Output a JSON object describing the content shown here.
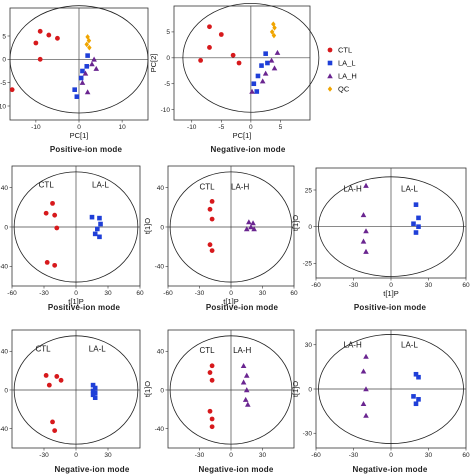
{
  "colors": {
    "CTL": "#d7191c",
    "LA_L": "#1f3fd8",
    "LA_H": "#6a2590",
    "QC": "#f0a500"
  },
  "legend": [
    {
      "label": "CTL",
      "shape": "circle",
      "color": "#d7191c"
    },
    {
      "label": "LA_L",
      "shape": "square",
      "color": "#1f3fd8"
    },
    {
      "label": "LA_H",
      "shape": "triangle",
      "color": "#6a2590"
    },
    {
      "label": "QC",
      "shape": "diamond",
      "color": "#f0a500"
    }
  ],
  "chart_data": [
    {
      "type": "scatter",
      "caption": "Positive-ion mode",
      "xlabel": "PC[1]",
      "ylabel": "",
      "xlim": [
        -16,
        16
      ],
      "ylim": [
        -13,
        11
      ],
      "xticks": [
        -10,
        0,
        10
      ],
      "yticks": [
        -10,
        -5,
        0,
        5
      ],
      "ellipse": {
        "rx": 16,
        "ry": 11.5
      },
      "group_labels": [],
      "series": [
        {
          "name": "CTL",
          "shape": "circle",
          "color": "#d7191c",
          "points": [
            [
              -9,
              6
            ],
            [
              -7,
              5.2
            ],
            [
              -10,
              3.5
            ],
            [
              -5,
              4.5
            ],
            [
              -9,
              0
            ],
            [
              -15.5,
              -6.5
            ]
          ]
        },
        {
          "name": "LA_L",
          "shape": "square",
          "color": "#1f3fd8",
          "points": [
            [
              2,
              0.8
            ],
            [
              1.8,
              -1.5
            ],
            [
              0.8,
              -2.5
            ],
            [
              0.5,
              -4
            ],
            [
              -1,
              -6.5
            ],
            [
              -0.5,
              -8
            ]
          ]
        },
        {
          "name": "LA_H",
          "shape": "triangle",
          "color": "#6a2590",
          "points": [
            [
              3.5,
              0
            ],
            [
              3,
              -1
            ],
            [
              4,
              -2
            ],
            [
              1.5,
              -3
            ],
            [
              0.8,
              -5
            ],
            [
              2,
              -7
            ]
          ]
        },
        {
          "name": "QC",
          "shape": "diamond",
          "color": "#f0a500",
          "points": [
            [
              2,
              4.8
            ],
            [
              2.3,
              4
            ],
            [
              1.8,
              3.2
            ],
            [
              2.4,
              2.5
            ]
          ]
        }
      ]
    },
    {
      "type": "scatter",
      "caption": "Negative-ion mode",
      "xlabel": "PC[1]",
      "ylabel": "PC[2]",
      "xlim": [
        -13,
        10
      ],
      "ylim": [
        -12,
        10
      ],
      "xticks": [
        -10,
        -5,
        0,
        5
      ],
      "yticks": [
        -10,
        -5,
        0,
        5
      ],
      "ellipse": {
        "rx": 11.5,
        "ry": 10.5
      },
      "group_labels": [],
      "series": [
        {
          "name": "CTL",
          "shape": "circle",
          "color": "#d7191c",
          "points": [
            [
              -7,
              6
            ],
            [
              -5,
              4.5
            ],
            [
              -7,
              2
            ],
            [
              -3,
              0.5
            ],
            [
              -8.5,
              -0.5
            ],
            [
              -2,
              -1
            ]
          ]
        },
        {
          "name": "LA_L",
          "shape": "square",
          "color": "#1f3fd8",
          "points": [
            [
              2.5,
              0.8
            ],
            [
              2.8,
              -1
            ],
            [
              1.8,
              -1.5
            ],
            [
              1.2,
              -3.5
            ],
            [
              0.5,
              -5
            ],
            [
              1,
              -6.5
            ]
          ]
        },
        {
          "name": "LA_H",
          "shape": "triangle",
          "color": "#6a2590",
          "points": [
            [
              4.5,
              1
            ],
            [
              3.5,
              -0.5
            ],
            [
              4,
              -2
            ],
            [
              2.5,
              -3
            ],
            [
              2,
              -4.5
            ],
            [
              0.2,
              -6.5
            ]
          ]
        },
        {
          "name": "QC",
          "shape": "diamond",
          "color": "#f0a500",
          "points": [
            [
              3.8,
              6.5
            ],
            [
              4,
              5.8
            ],
            [
              3.6,
              5
            ],
            [
              3.9,
              4.3
            ]
          ]
        }
      ]
    },
    {
      "type": "scatter",
      "caption": "Positive-ion mode",
      "xlabel": "t[1]P",
      "ylabel": "",
      "xlim": [
        -60,
        60
      ],
      "ylim": [
        -60,
        62
      ],
      "xticks": [
        -60,
        -30,
        0,
        30,
        60
      ],
      "yticks": [
        -40,
        0,
        40
      ],
      "ellipse": {
        "rx": 58,
        "ry": 56
      },
      "group_labels": [
        {
          "text": "CTL",
          "x": -35,
          "y": 40
        },
        {
          "text": "LA-L",
          "x": 15,
          "y": 40
        }
      ],
      "series": [
        {
          "name": "CTL",
          "shape": "circle",
          "color": "#d7191c",
          "points": [
            [
              -22,
              24
            ],
            [
              -28,
              14
            ],
            [
              -20,
              12
            ],
            [
              -18,
              -1
            ],
            [
              -27,
              -36
            ],
            [
              -20,
              -39
            ]
          ]
        },
        {
          "name": "LA_L",
          "shape": "square",
          "color": "#1f3fd8",
          "points": [
            [
              15,
              10
            ],
            [
              22,
              9
            ],
            [
              23,
              3
            ],
            [
              20,
              -2
            ],
            [
              18,
              -7
            ],
            [
              22,
              -10
            ]
          ]
        }
      ]
    },
    {
      "type": "scatter",
      "caption": "Positive-ion mode",
      "xlabel": "t[1]P",
      "ylabel": "t[1]O",
      "xlim": [
        -60,
        60
      ],
      "ylim": [
        -60,
        62
      ],
      "xticks": [
        -60,
        -30,
        0,
        30,
        60
      ],
      "yticks": [
        -40,
        0,
        40
      ],
      "ellipse": {
        "rx": 58,
        "ry": 56
      },
      "group_labels": [
        {
          "text": "CTL",
          "x": -30,
          "y": 38
        },
        {
          "text": "LA-H",
          "x": 0,
          "y": 38
        }
      ],
      "series": [
        {
          "name": "CTL",
          "shape": "circle",
          "color": "#d7191c",
          "points": [
            [
              -18,
              26
            ],
            [
              -20,
              18
            ],
            [
              -18,
              8
            ],
            [
              -20,
              -18
            ],
            [
              -18,
              -24
            ]
          ]
        },
        {
          "name": "LA_H",
          "shape": "triangle",
          "color": "#6a2590",
          "points": [
            [
              17,
              5
            ],
            [
              21,
              4
            ],
            [
              19,
              0
            ],
            [
              15,
              -2
            ],
            [
              22,
              -2
            ]
          ]
        }
      ]
    },
    {
      "type": "scatter",
      "caption": "Positive-ion mode",
      "xlabel": "t[1]P",
      "ylabel": "t[1]O",
      "xlim": [
        -60,
        60
      ],
      "ylim": [
        -35,
        40
      ],
      "xticks": [
        -60,
        -30,
        0,
        30,
        60
      ],
      "yticks": [
        -25,
        0,
        25
      ],
      "ellipse": {
        "rx": 58,
        "ry": 34
      },
      "group_labels": [
        {
          "text": "LA-H",
          "x": -38,
          "y": 24
        },
        {
          "text": "LA-L",
          "x": 8,
          "y": 24
        }
      ],
      "series": [
        {
          "name": "LA_H",
          "shape": "triangle",
          "color": "#6a2590",
          "points": [
            [
              -20,
              28
            ],
            [
              -22,
              8
            ],
            [
              -20,
              -3
            ],
            [
              -22,
              -10
            ],
            [
              -20,
              -17
            ]
          ]
        },
        {
          "name": "LA_L",
          "shape": "square",
          "color": "#1f3fd8",
          "points": [
            [
              20,
              15
            ],
            [
              22,
              6
            ],
            [
              18,
              2
            ],
            [
              22,
              0
            ],
            [
              20,
              -4
            ]
          ]
        }
      ]
    },
    {
      "type": "scatter",
      "caption": "Negative-ion mode",
      "xlabel": "",
      "ylabel": "",
      "xlim": [
        -60,
        60
      ],
      "ylim": [
        -60,
        62
      ],
      "xticks": [
        -30,
        0,
        30
      ],
      "yticks": [
        -40,
        0,
        40
      ],
      "ellipse": {
        "rx": 58,
        "ry": 56
      },
      "group_labels": [
        {
          "text": "CTL",
          "x": -38,
          "y": 40
        },
        {
          "text": "LA-L",
          "x": 12,
          "y": 40
        }
      ],
      "series": [
        {
          "name": "CTL",
          "shape": "circle",
          "color": "#d7191c",
          "points": [
            [
              -28,
              15
            ],
            [
              -18,
              14
            ],
            [
              -14,
              10
            ],
            [
              -25,
              5
            ],
            [
              -22,
              -33
            ],
            [
              -20,
              -42
            ]
          ]
        },
        {
          "name": "LA_L",
          "shape": "square",
          "color": "#1f3fd8",
          "points": [
            [
              16,
              5
            ],
            [
              18,
              2
            ],
            [
              16,
              -1
            ],
            [
              18,
              -3
            ],
            [
              16,
              -5
            ],
            [
              18,
              -8
            ]
          ]
        }
      ]
    },
    {
      "type": "scatter",
      "caption": "Negative-ion mode",
      "xlabel": "",
      "ylabel": "t[1]O",
      "xlim": [
        -60,
        60
      ],
      "ylim": [
        -60,
        62
      ],
      "xticks": [
        -30,
        0,
        30
      ],
      "yticks": [
        -40,
        0,
        40
      ],
      "ellipse": {
        "rx": 58,
        "ry": 56
      },
      "group_labels": [
        {
          "text": "CTL",
          "x": -30,
          "y": 38
        },
        {
          "text": "LA-H",
          "x": 2,
          "y": 38
        }
      ],
      "series": [
        {
          "name": "CTL",
          "shape": "circle",
          "color": "#d7191c",
          "points": [
            [
              -18,
              25
            ],
            [
              -20,
              18
            ],
            [
              -18,
              10
            ],
            [
              -20,
              -22
            ],
            [
              -18,
              -30
            ],
            [
              -18,
              -38
            ]
          ]
        },
        {
          "name": "LA_H",
          "shape": "triangle",
          "color": "#6a2590",
          "points": [
            [
              12,
              25
            ],
            [
              15,
              15
            ],
            [
              12,
              8
            ],
            [
              15,
              0
            ],
            [
              14,
              -10
            ],
            [
              16,
              -15
            ]
          ]
        }
      ]
    },
    {
      "type": "scatter",
      "caption": "Negative-ion mode",
      "xlabel": "",
      "ylabel": "t[1]O",
      "xlim": [
        -60,
        60
      ],
      "ylim": [
        -40,
        40
      ],
      "xticks": [
        -60,
        -30,
        0,
        30,
        60
      ],
      "yticks": [
        -30,
        0,
        30
      ],
      "ellipse": {
        "rx": 58,
        "ry": 37
      },
      "group_labels": [
        {
          "text": "LA-H",
          "x": -38,
          "y": 28
        },
        {
          "text": "LA-L",
          "x": 8,
          "y": 28
        }
      ],
      "series": [
        {
          "name": "LA_H",
          "shape": "triangle",
          "color": "#6a2590",
          "points": [
            [
              -20,
              22
            ],
            [
              -22,
              12
            ],
            [
              -20,
              0
            ],
            [
              -22,
              -10
            ],
            [
              -20,
              -18
            ]
          ]
        },
        {
          "name": "LA_L",
          "shape": "square",
          "color": "#1f3fd8",
          "points": [
            [
              20,
              10
            ],
            [
              22,
              8
            ],
            [
              18,
              -5
            ],
            [
              22,
              -7
            ],
            [
              20,
              -10
            ]
          ]
        }
      ]
    }
  ]
}
